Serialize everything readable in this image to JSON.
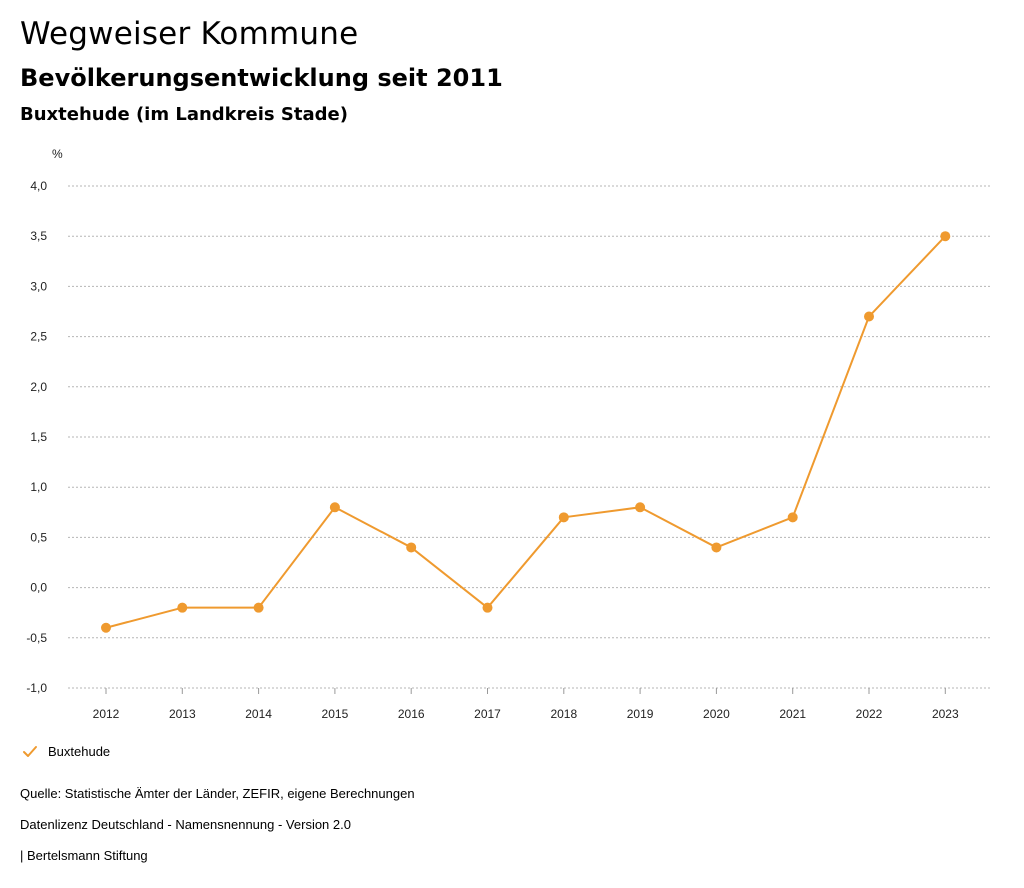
{
  "header": {
    "title": "Wegweiser Kommune",
    "subtitle": "Bevölkerungsentwicklung seit 2011",
    "region": "Buxtehude (im Landkreis Stade)"
  },
  "chart_data": {
    "type": "line",
    "title": "Bevölkerungsentwicklung seit 2011",
    "xlabel": "",
    "ylabel": "%",
    "x": [
      "2012",
      "2013",
      "2014",
      "2015",
      "2016",
      "2017",
      "2018",
      "2019",
      "2020",
      "2021",
      "2022",
      "2023"
    ],
    "series": [
      {
        "name": "Buxtehude",
        "color": "#ef9a2f",
        "values": [
          -0.4,
          -0.2,
          -0.2,
          0.8,
          0.4,
          -0.2,
          0.7,
          0.8,
          0.4,
          0.7,
          2.7,
          3.5
        ]
      }
    ],
    "ylim": [
      -1.0,
      4.0
    ],
    "yticks": [
      -1.0,
      -0.5,
      0.0,
      0.5,
      1.0,
      1.5,
      2.0,
      2.5,
      3.0,
      3.5,
      4.0
    ],
    "ytick_labels": [
      "-1,0",
      "-0,5",
      "0,0",
      "0,5",
      "1,0",
      "1,5",
      "2,0",
      "2,5",
      "3,0",
      "3,5",
      "4,0"
    ],
    "grid": true,
    "legend_position": "bottom-left"
  },
  "legend": {
    "label": "Buxtehude",
    "icon": "check-icon"
  },
  "footer": {
    "source": "Quelle: Statistische Ämter der Länder, ZEFIR, eigene Berechnungen",
    "license": "Datenlizenz Deutschland - Namensnennung - Version 2.0",
    "publisher": "| Bertelsmann Stiftung"
  }
}
